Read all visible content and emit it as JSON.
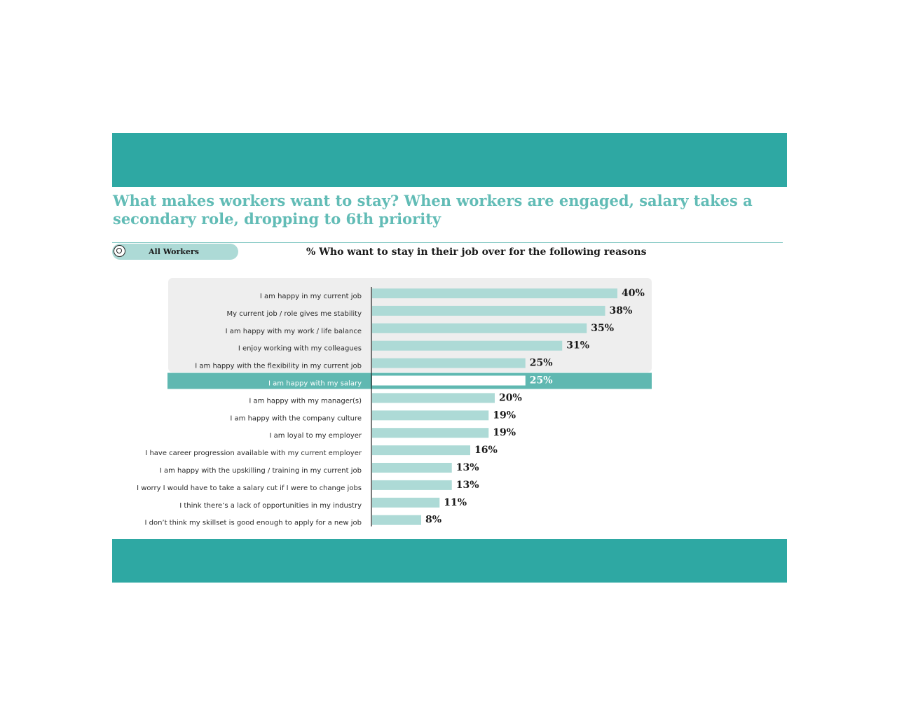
{
  "title": "What makes workers want to stay? When workers are engaged, salary takes a secondary role, dropping to 6th priority",
  "filter": {
    "label": "All Workers",
    "icon": "radio-selected-icon"
  },
  "colors": {
    "band": "#2ea8a3",
    "title": "#62bcb6",
    "bar": "#addad6",
    "highlight_row": "#5fb8b1",
    "highlight_bar": "#ffffff",
    "top_panel": "#eeeeee"
  },
  "chart_data": {
    "type": "bar",
    "orientation": "horizontal",
    "title": "% Who want to stay in their job over for the following reasons",
    "categories": [
      "I am happy in my current job",
      "My current job / role gives me stability",
      "I am happy with my work / life balance",
      "I enjoy working with my colleagues",
      "I am happy with the flexibility in my current job",
      "I am happy with my salary",
      "I am happy with my manager(s)",
      "I am happy with the company culture",
      "I am loyal to my employer",
      "I have career progression available with my current employer",
      "I am happy with the upskilling / training in my current job",
      "I worry I would have to take a salary cut if I were to change jobs",
      "I think there’s a lack of opportunities in my industry",
      "I don’t think my skillset is good enough to apply for a new job"
    ],
    "values": [
      40,
      38,
      35,
      31,
      25,
      25,
      20,
      19,
      19,
      16,
      13,
      13,
      11,
      8
    ],
    "labels": [
      "40%",
      "38%",
      "35%",
      "31%",
      "25%",
      "25%",
      "20%",
      "19%",
      "19%",
      "16%",
      "13%",
      "13%",
      "11%",
      "8%"
    ],
    "highlighted_category": "I am happy with my salary",
    "top_group_size": 5,
    "xlim": [
      0,
      40
    ],
    "grid": false
  }
}
